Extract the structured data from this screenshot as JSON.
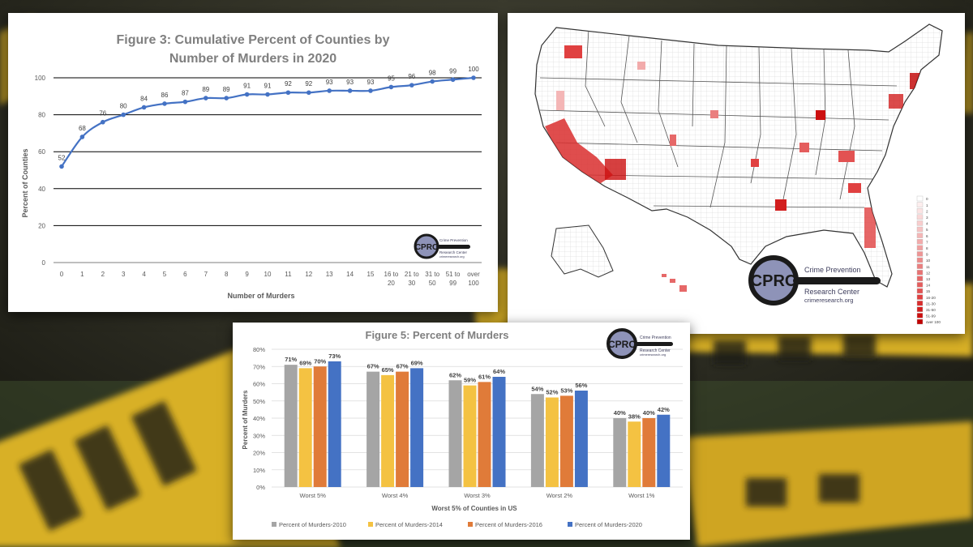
{
  "chart_data": [
    {
      "type": "line",
      "title_lines": [
        "Figure 3: Cumulative Percent of Counties by",
        "Number of Murders in 2020"
      ],
      "xlabel": "Number of Murders",
      "ylabel": "Percent of Counties",
      "ylim": [
        0,
        100
      ],
      "yticks": [
        0,
        20,
        40,
        60,
        80,
        100
      ],
      "grid": true,
      "categories": [
        [
          "0"
        ],
        [
          "1"
        ],
        [
          "2"
        ],
        [
          "3"
        ],
        [
          "4"
        ],
        [
          "5"
        ],
        [
          "6"
        ],
        [
          "7"
        ],
        [
          "8"
        ],
        [
          "9"
        ],
        [
          "10"
        ],
        [
          "11"
        ],
        [
          "12"
        ],
        [
          "13"
        ],
        [
          "14"
        ],
        [
          "15"
        ],
        [
          "16 to",
          "20"
        ],
        [
          "21 to",
          "30"
        ],
        [
          "31 to",
          "50"
        ],
        [
          "51 to",
          "99"
        ],
        [
          "over",
          "100"
        ]
      ],
      "series": [
        {
          "values": [
            52,
            68,
            76,
            80,
            84,
            86,
            87,
            89,
            89,
            91,
            91,
            92,
            92,
            93,
            93,
            93,
            95,
            96,
            98,
            99,
            100
          ],
          "color": "#4472c4"
        }
      ]
    },
    {
      "type": "bar",
      "title": "Figure 5: Percent of Murders",
      "xlabel": "Worst 5% of Counties in US",
      "ylabel": "Percent of Murders",
      "ylim": [
        0,
        80
      ],
      "yticks": [
        "0%",
        "10%",
        "20%",
        "30%",
        "40%",
        "50%",
        "60%",
        "70%",
        "80%"
      ],
      "grid": true,
      "legend_position": "bottom",
      "categories": [
        "Worst 5%",
        "Worst 4%",
        "Worst 3%",
        "Worst 2%",
        "Worst 1%"
      ],
      "series": [
        {
          "name": "Percent of Murders-2010",
          "values": [
            71,
            67,
            62,
            54,
            40
          ],
          "color": "#a5a5a5"
        },
        {
          "name": "Percent of Murders-2014",
          "values": [
            69,
            65,
            59,
            52,
            38
          ],
          "color": "#f4c242"
        },
        {
          "name": "Percent of Murders-2016",
          "values": [
            70,
            67,
            61,
            53,
            40
          ],
          "color": "#e07b39"
        },
        {
          "name": "Percent of Murders-2020",
          "values": [
            73,
            69,
            64,
            56,
            42
          ],
          "color": "#4472c4"
        }
      ]
    }
  ],
  "map": {
    "legend": [
      "0",
      "1",
      "2",
      "3",
      "4",
      "5",
      "6",
      "7",
      "8",
      "9",
      "10",
      "11",
      "12",
      "13",
      "14",
      "15",
      "16-20",
      "21-30",
      "31-50",
      "51-99",
      "over 100"
    ],
    "legend_colors": [
      "#ffffff",
      "#fdeeee",
      "#fce3e3",
      "#fad8d8",
      "#f8cdcd",
      "#f6c2c2",
      "#f4b6b6",
      "#f2abab",
      "#f0a0a0",
      "#ee9595",
      "#ec8a8a",
      "#ea7f7f",
      "#e87373",
      "#e66868",
      "#e45d5d",
      "#e25252",
      "#e04040",
      "#d92e2e",
      "#d21e1e",
      "#cc1010",
      "#c00000"
    ]
  },
  "branding": {
    "logo_mark": "CPRC",
    "name_line1": "Crime Prevention",
    "name_line2": "Research Center",
    "url": "crimeresearch.org"
  }
}
